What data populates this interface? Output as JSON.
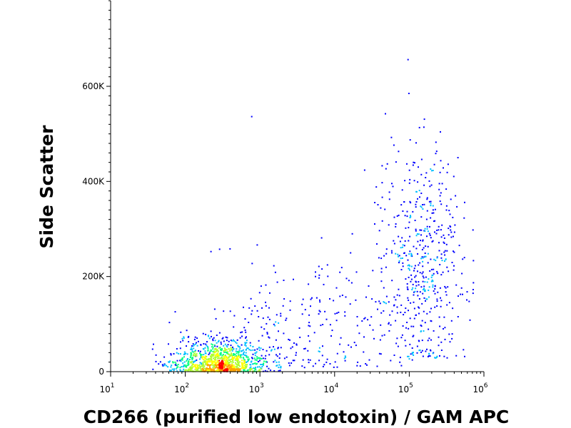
{
  "chart_data": {
    "type": "scatter",
    "style": "pseudocolor density dot plot (flow cytometry)",
    "xlabel": "CD266 (purified low endotoxin) / GAM APC",
    "ylabel": "Side Scatter",
    "x_scale": "log",
    "y_scale": "linear",
    "xlim": [
      10,
      1000000
    ],
    "ylim": [
      0,
      780000
    ],
    "x_ticks": [
      {
        "base": "10",
        "exp": "1",
        "value": 10
      },
      {
        "base": "10",
        "exp": "2",
        "value": 100
      },
      {
        "base": "10",
        "exp": "3",
        "value": 1000
      },
      {
        "base": "10",
        "exp": "4",
        "value": 10000
      },
      {
        "base": "10",
        "exp": "5",
        "value": 100000
      },
      {
        "base": "10",
        "exp": "6",
        "value": 1000000
      }
    ],
    "y_ticks": [
      {
        "label": "0",
        "value": 0
      },
      {
        "label": "200K",
        "value": 200000
      },
      {
        "label": "400K",
        "value": 400000
      },
      {
        "label": "600K",
        "value": 600000
      }
    ],
    "density_colors": [
      "#00008b",
      "#0000ff",
      "#00bfff",
      "#00ff7f",
      "#adff2f",
      "#ffff00",
      "#ffa500",
      "#ff0000"
    ],
    "populations": [
      {
        "name": "low",
        "n": 1100,
        "x_center": 280,
        "x_spread_log10": 0.32,
        "y_center": 15000,
        "y_spread": 30000,
        "y_min": 0
      },
      {
        "name": "bridge",
        "n": 260,
        "x_center": 5000,
        "x_spread_log10": 0.75,
        "y_center": 130000,
        "y_spread": 110000,
        "y_min": 0
      },
      {
        "name": "high",
        "n": 520,
        "x_center": 150000,
        "x_spread_log10": 0.28,
        "y_center": 230000,
        "y_spread": 120000,
        "y_min": 30000
      }
    ],
    "grid": false,
    "legend": "none"
  }
}
